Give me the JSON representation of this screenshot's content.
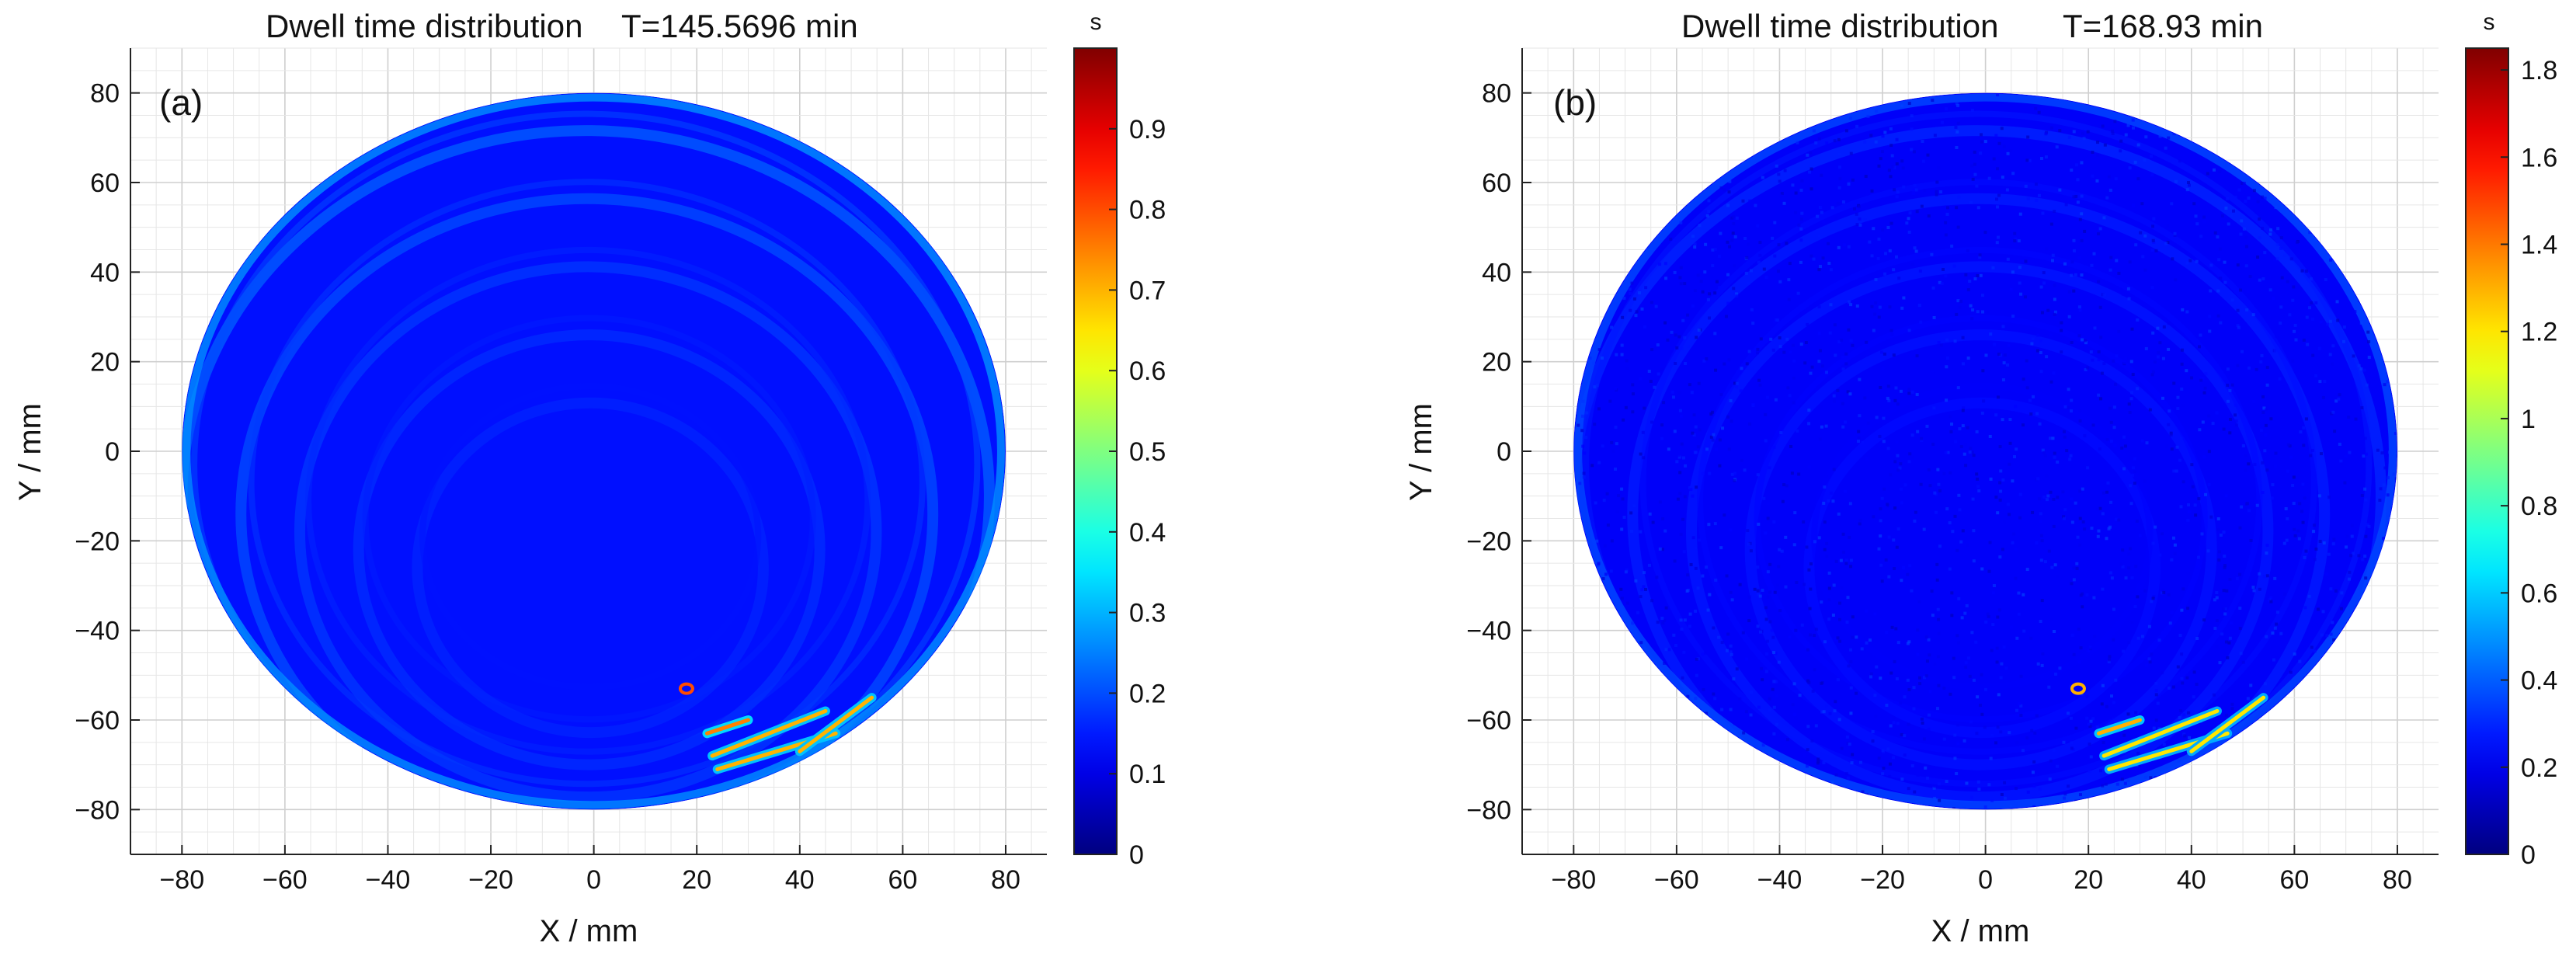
{
  "chart_data": [
    {
      "type": "heatmap",
      "panel_label": "(a)",
      "title": "Dwell time distribution",
      "title_extra": "T=145.5696  min",
      "xlabel": "X / mm",
      "ylabel": "Y / mm",
      "xlim": [
        -90,
        88
      ],
      "ylim": [
        -90,
        90
      ],
      "xticks": [
        -80,
        -60,
        -40,
        -20,
        0,
        20,
        40,
        60,
        80
      ],
      "yticks": [
        -80,
        -60,
        -40,
        -20,
        0,
        20,
        40,
        60,
        80
      ],
      "xtick_labels": [
        "−80",
        "−60",
        "−40",
        "−20",
        "0",
        "20",
        "40",
        "60",
        "80"
      ],
      "ytick_labels": [
        "−80",
        "−60",
        "−40",
        "−20",
        "0",
        "20",
        "40",
        "60",
        "80"
      ],
      "grid": true,
      "aperture_radius": 80,
      "colorbar": {
        "unit": "s",
        "min": 0,
        "max": 1.0,
        "ticks": [
          "0",
          "0.1",
          "0.2",
          "0.3",
          "0.4",
          "0.5",
          "0.6",
          "0.7",
          "0.8",
          "0.9"
        ],
        "tick_values": [
          0,
          0.1,
          0.2,
          0.3,
          0.4,
          0.5,
          0.6,
          0.7,
          0.8,
          0.9
        ],
        "colormap": "jet"
      },
      "dominant_value": 0.14,
      "texture": "smooth",
      "ring_values": [
        0.22,
        0.2,
        0.18,
        0.17,
        0.16
      ],
      "hotspots": [
        {
          "shape": "ring",
          "x": 18,
          "y": -53,
          "value": 0.8
        },
        {
          "shape": "stroke",
          "points": [
            [
              22,
              -63
            ],
            [
              30,
              -60
            ]
          ],
          "value": 0.75
        },
        {
          "shape": "stroke",
          "points": [
            [
              23,
              -68
            ],
            [
              45,
              -58
            ]
          ],
          "value": 0.7
        },
        {
          "shape": "stroke",
          "points": [
            [
              24,
              -71
            ],
            [
              47,
              -63
            ]
          ],
          "value": 0.7
        },
        {
          "shape": "stroke",
          "points": [
            [
              40,
              -67
            ],
            [
              54,
              -55
            ]
          ],
          "value": 0.7
        }
      ]
    },
    {
      "type": "heatmap",
      "panel_label": "(b)",
      "title": "Dwell time distribution",
      "title_extra": "T=168.93 min",
      "xlabel": "X / mm",
      "ylabel": "Y / mm",
      "xlim": [
        -90,
        88
      ],
      "ylim": [
        -90,
        90
      ],
      "xticks": [
        -80,
        -60,
        -40,
        -20,
        0,
        20,
        40,
        60,
        80
      ],
      "yticks": [
        -80,
        -60,
        -40,
        -20,
        0,
        20,
        40,
        60,
        80
      ],
      "xtick_labels": [
        "−80",
        "−60",
        "−40",
        "−20",
        "0",
        "20",
        "40",
        "60",
        "80"
      ],
      "ytick_labels": [
        "−80",
        "−60",
        "−40",
        "−20",
        "0",
        "20",
        "40",
        "60",
        "80"
      ],
      "grid": true,
      "aperture_radius": 80,
      "colorbar": {
        "unit": "s",
        "min": 0,
        "max": 1.85,
        "ticks": [
          "0",
          "0.2",
          "0.4",
          "0.6",
          "0.8",
          "1",
          "1.2",
          "1.4",
          "1.6",
          "1.8"
        ],
        "tick_values": [
          0,
          0.2,
          0.4,
          0.6,
          0.8,
          1.0,
          1.2,
          1.4,
          1.6,
          1.8
        ],
        "colormap": "jet"
      },
      "dominant_value": 0.22,
      "texture": "noisy",
      "ring_values": [
        0.3,
        0.28,
        0.27,
        0.26,
        0.25
      ],
      "hotspots": [
        {
          "shape": "ring",
          "x": 18,
          "y": -53,
          "value": 1.3
        },
        {
          "shape": "stroke",
          "points": [
            [
              22,
              -63
            ],
            [
              30,
              -60
            ]
          ],
          "value": 1.3
        },
        {
          "shape": "stroke",
          "points": [
            [
              23,
              -68
            ],
            [
              45,
              -58
            ]
          ],
          "value": 1.2
        },
        {
          "shape": "stroke",
          "points": [
            [
              24,
              -71
            ],
            [
              47,
              -63
            ]
          ],
          "value": 1.2
        },
        {
          "shape": "stroke",
          "points": [
            [
              40,
              -67
            ],
            [
              54,
              -55
            ]
          ],
          "value": 1.2
        }
      ]
    }
  ]
}
